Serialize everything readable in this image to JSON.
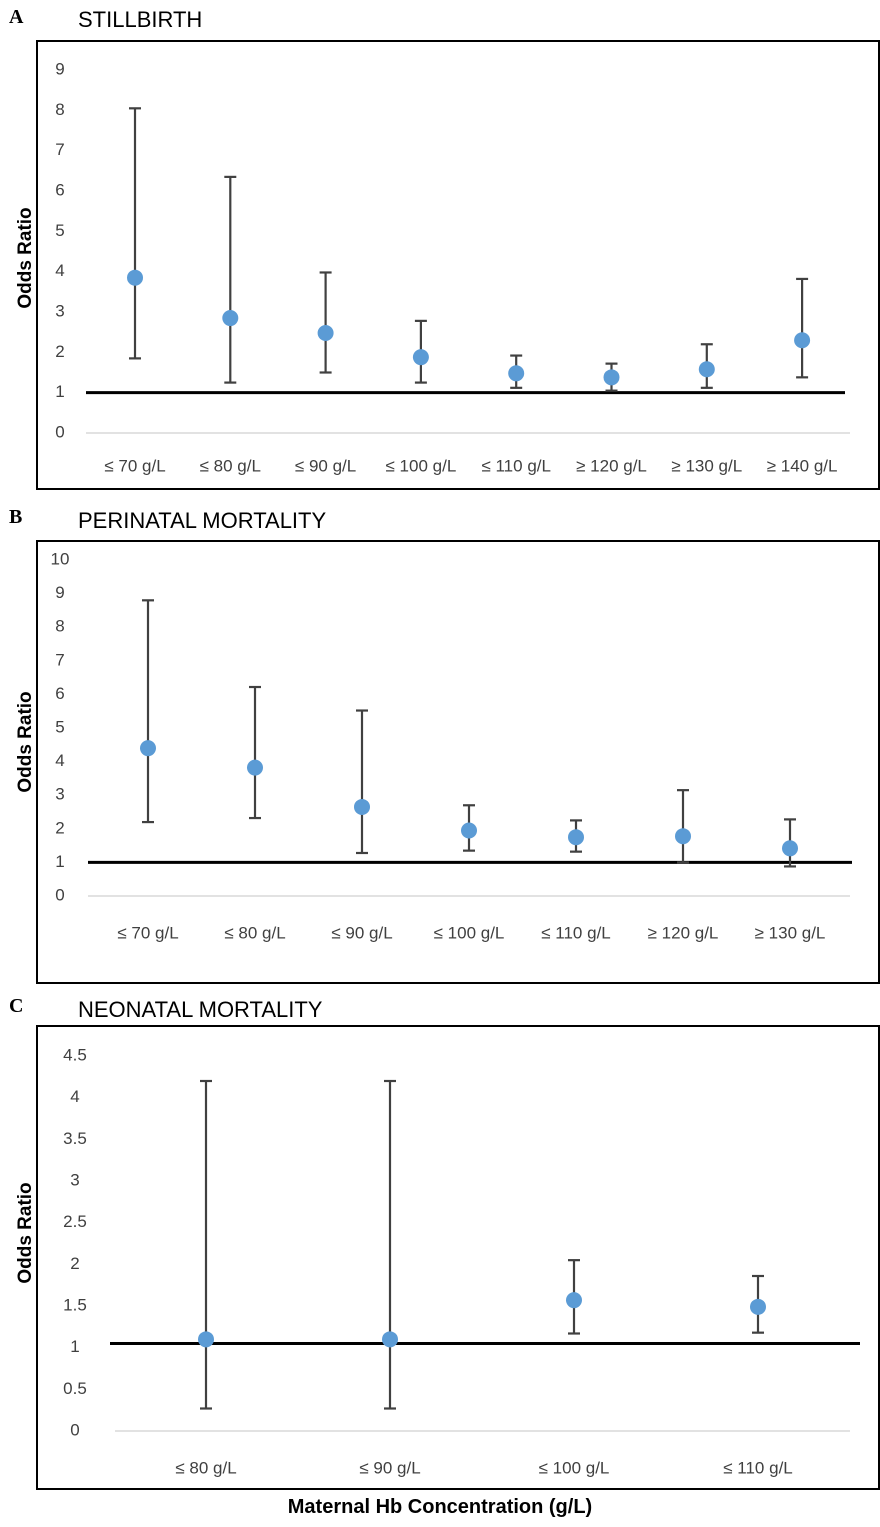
{
  "footer": {
    "xlabel": "Maternal Hb Concentration (g/L)"
  },
  "panels": [
    {
      "letter": "A",
      "title": "STILLBIRTH",
      "ylabel": "Odds Ratio"
    },
    {
      "letter": "B",
      "title": "PERINATAL MORTALITY",
      "ylabel": "Odds Ratio"
    },
    {
      "letter": "C",
      "title": "NEONATAL MORTALITY",
      "ylabel": "Odds Ratio"
    }
  ],
  "colors": {
    "marker": "#5b9bd5",
    "errorbar": "#404040",
    "reference_line": "#000000",
    "axis": "#d9d9d9"
  },
  "chart_data": [
    {
      "type": "scatter",
      "title": "STILLBIRTH",
      "ylabel": "Odds Ratio",
      "xlabel": "Maternal Hb Concentration (g/L)",
      "categories": [
        "≤ 70 g/L",
        "≤ 80 g/L",
        "≤ 90 g/L",
        "≤ 100 g/L",
        "≤ 110 g/L",
        "≥ 120 g/L",
        "≥ 130 g/L",
        "≥ 140 g/L"
      ],
      "values": [
        3.85,
        2.85,
        2.48,
        1.88,
        1.48,
        1.38,
        1.58,
        2.3
      ],
      "ci_lower": [
        1.85,
        1.25,
        1.5,
        1.25,
        1.12,
        1.05,
        1.12,
        1.38
      ],
      "ci_upper": [
        8.05,
        6.35,
        3.98,
        2.78,
        1.92,
        1.72,
        2.2,
        3.82
      ],
      "yticks": [
        "0",
        "1",
        "2",
        "3",
        "4",
        "5",
        "6",
        "7",
        "8",
        "9"
      ],
      "ylim": [
        0,
        9
      ],
      "reference_line": 1,
      "grid": false
    },
    {
      "type": "scatter",
      "title": "PERINATAL MORTALITY",
      "ylabel": "Odds Ratio",
      "xlabel": "Maternal Hb Concentration (g/L)",
      "categories": [
        "≤ 70 g/L",
        "≤ 80 g/L",
        "≤ 90 g/L",
        "≤ 100 g/L",
        "≤ 110 g/L",
        "≥ 120 g/L",
        "≥ 130 g/L"
      ],
      "values": [
        4.4,
        3.82,
        2.65,
        1.95,
        1.75,
        1.78,
        1.42
      ],
      "ci_lower": [
        2.2,
        2.32,
        1.28,
        1.35,
        1.32,
        1.0,
        0.88
      ],
      "ci_upper": [
        8.8,
        6.22,
        5.52,
        2.7,
        2.25,
        3.15,
        2.28
      ],
      "yticks": [
        "0",
        "1",
        "2",
        "3",
        "4",
        "5",
        "6",
        "7",
        "8",
        "9",
        "10"
      ],
      "ylim": [
        0,
        10
      ],
      "reference_line": 1,
      "grid": false
    },
    {
      "type": "scatter",
      "title": "NEONATAL MORTALITY",
      "ylabel": "Odds Ratio",
      "xlabel": "Maternal Hb Concentration (g/L)",
      "categories": [
        "≤ 80 g/L",
        "≤ 90 g/L",
        "≤ 100 g/L",
        "≤ 110 g/L"
      ],
      "values": [
        1.1,
        1.1,
        1.57,
        1.49
      ],
      "ci_lower": [
        0.27,
        0.27,
        1.17,
        1.18
      ],
      "ci_upper": [
        4.2,
        4.2,
        2.05,
        1.86
      ],
      "yticks": [
        "0",
        "0.5",
        "1",
        "1.5",
        "2",
        "2.5",
        "3",
        "3.5",
        "4",
        "4.5"
      ],
      "ylim": [
        0,
        4.5
      ],
      "reference_line": 1.05,
      "grid": false
    }
  ]
}
